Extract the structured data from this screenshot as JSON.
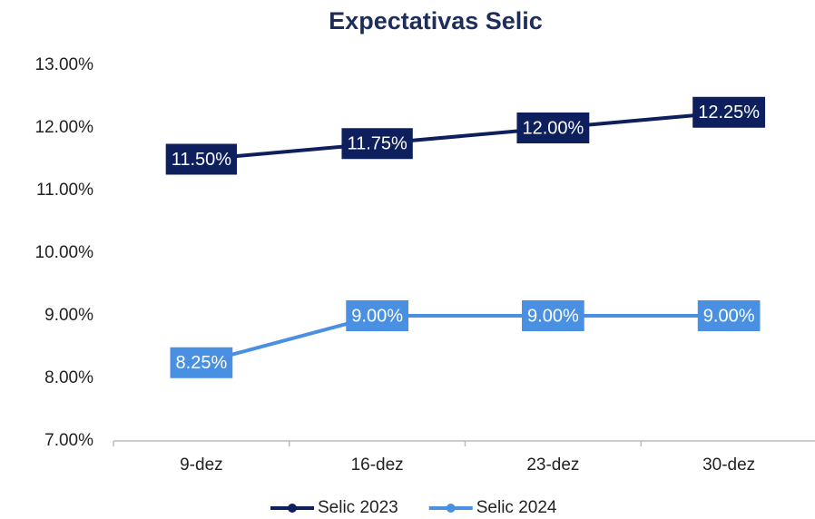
{
  "chart_data": {
    "type": "line",
    "title": "Expectativas Selic",
    "categories": [
      "9-dez",
      "16-dez",
      "23-dez",
      "30-dez"
    ],
    "series": [
      {
        "name": "Selic 2023",
        "color": "#0d1f5c",
        "values": [
          11.5,
          11.75,
          12,
          12.25
        ],
        "value_labels": [
          "11.50%",
          "11.75%",
          "12.00%",
          "12.25%"
        ]
      },
      {
        "name": "Selic 2024",
        "color": "#4a90e2",
        "values": [
          8.25,
          9,
          9,
          9
        ],
        "value_labels": [
          "8.25%",
          "9.00%",
          "9.00%",
          "9.00%"
        ]
      }
    ],
    "ylim": [
      7,
      13
    ],
    "yticks": [
      {
        "value": 7,
        "label": "7.00%"
      },
      {
        "value": 8,
        "label": "8.00%"
      },
      {
        "value": 9,
        "label": "9.00%"
      },
      {
        "value": 10,
        "label": "10.00%"
      },
      {
        "value": 11,
        "label": "11.00%"
      },
      {
        "value": 12,
        "label": "12.00%"
      },
      {
        "value": 13,
        "label": "13.00%"
      }
    ],
    "grid": false,
    "legend": "bottom"
  }
}
